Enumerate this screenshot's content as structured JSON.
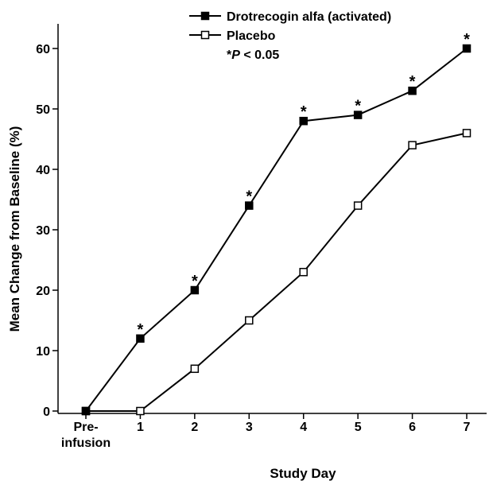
{
  "chart_data": {
    "type": "line",
    "categories": [
      "Pre-\ninfusion",
      "1",
      "2",
      "3",
      "4",
      "5",
      "6",
      "7"
    ],
    "series": [
      {
        "name": "Drotrecogin alfa (activated)",
        "values": [
          0,
          12,
          20,
          34,
          48,
          49,
          53,
          60
        ],
        "marker": "filled-square",
        "significant": [
          false,
          true,
          true,
          true,
          true,
          true,
          true,
          true
        ]
      },
      {
        "name": "Placebo",
        "values": [
          0,
          0,
          7,
          15,
          23,
          34,
          44,
          46
        ],
        "marker": "open-square"
      }
    ],
    "xlabel": "Study Day",
    "ylabel": "Mean Change from Baseline (%)",
    "ylim": [
      0,
      60
    ],
    "yticks": [
      0,
      10,
      20,
      30,
      40,
      50,
      60
    ],
    "legend_position": "top-center",
    "significance_note": {
      "star": "*",
      "p": "P",
      "rest": " < 0.05"
    },
    "grid": false,
    "colors": {
      "line": "#000000",
      "background": "#ffffff"
    }
  }
}
